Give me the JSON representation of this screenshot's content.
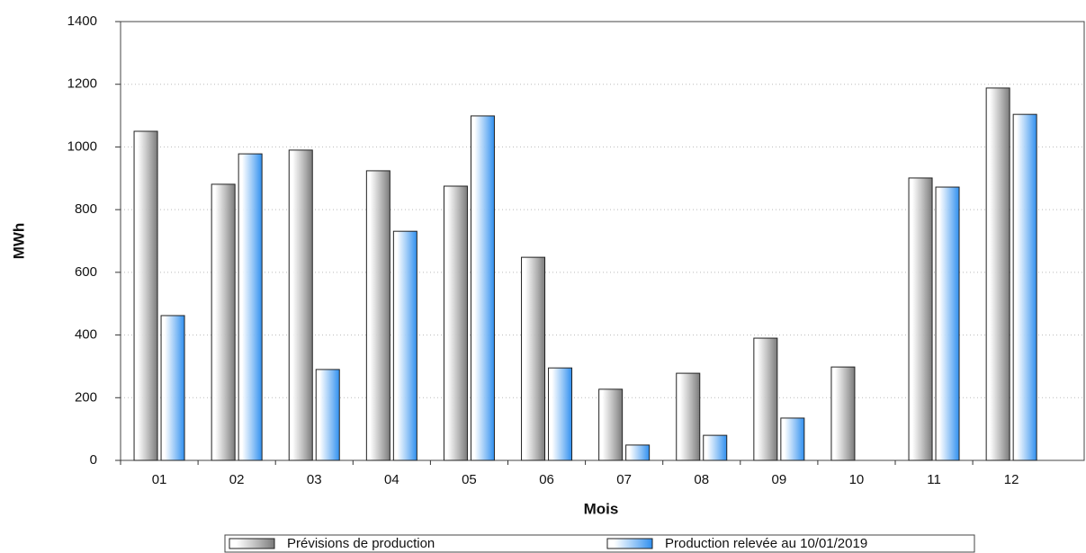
{
  "chart_data": {
    "type": "bar",
    "x_label": "Mois",
    "y_label": "MWh",
    "categories": [
      "01",
      "02",
      "03",
      "04",
      "05",
      "06",
      "07",
      "08",
      "09",
      "10",
      "11",
      "12"
    ],
    "series": [
      {
        "name": "Prévisions de production",
        "color": "#7a7a7a",
        "values": [
          1050,
          881,
          990,
          924,
          875,
          648,
          227,
          278,
          390,
          298,
          901,
          1188
        ]
      },
      {
        "name": "Production relevée au 10/01/2019",
        "color": "#2f8fef",
        "values": [
          462,
          978,
          290,
          731,
          1099,
          295,
          49,
          80,
          135,
          null,
          872,
          1104
        ]
      }
    ],
    "ylim": [
      0,
      1400
    ],
    "yticks": [
      0,
      200,
      400,
      600,
      800,
      1000,
      1200,
      1400
    ],
    "grid": true
  }
}
